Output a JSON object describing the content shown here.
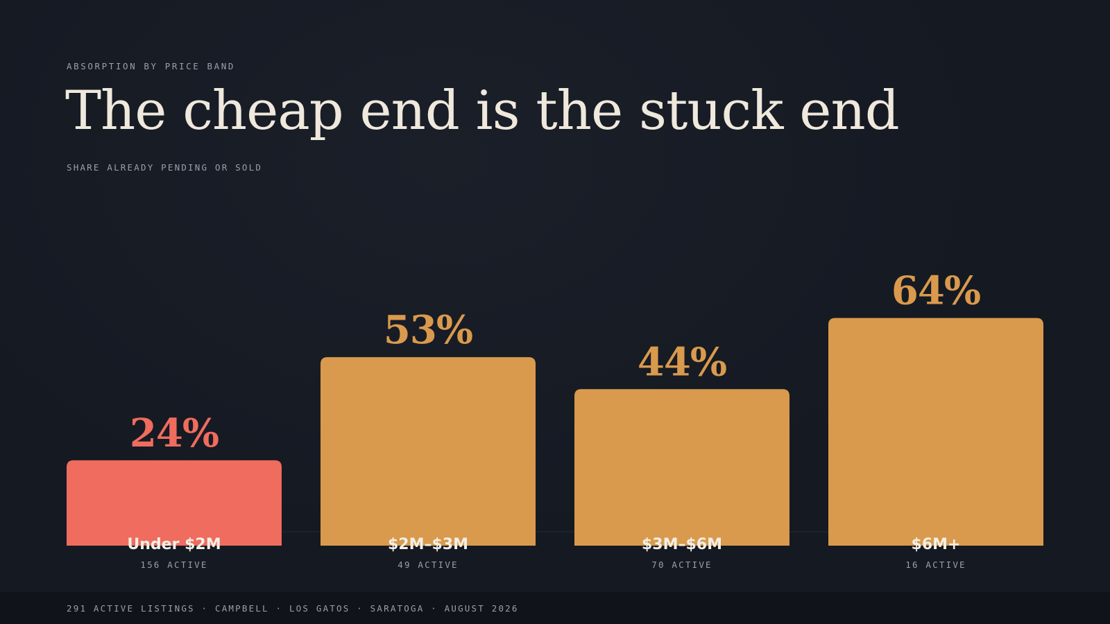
{
  "header": {
    "eyebrow": "ABSORPTION BY PRICE BAND",
    "title": "The cheap end is the stuck end",
    "subtitle": "SHARE ALREADY PENDING OR SOLD"
  },
  "footer": {
    "text": "291 ACTIVE LISTINGS · CAMPBELL · LOS GATOS · SARATOGA · AUGUST 2026"
  },
  "colors": {
    "background": "#151922",
    "highlight": "#ef6c5e",
    "bar": "#d99a4d",
    "title": "#efe8dc",
    "muted": "#9aa0aa"
  },
  "chart_data": {
    "type": "bar",
    "categories": [
      "Under $2M",
      "$2M–$3M",
      "$3M–$6M",
      "$6M+"
    ],
    "values": [
      24,
      53,
      44,
      64
    ],
    "value_labels": [
      "24%",
      "53%",
      "44%",
      "64%"
    ],
    "sublabels": [
      "156 ACTIVE",
      "49 ACTIVE",
      "70 ACTIVE",
      "16 ACTIVE"
    ],
    "highlight_index": 0,
    "ylim": [
      0,
      100
    ],
    "grid": false,
    "legend": "none"
  }
}
